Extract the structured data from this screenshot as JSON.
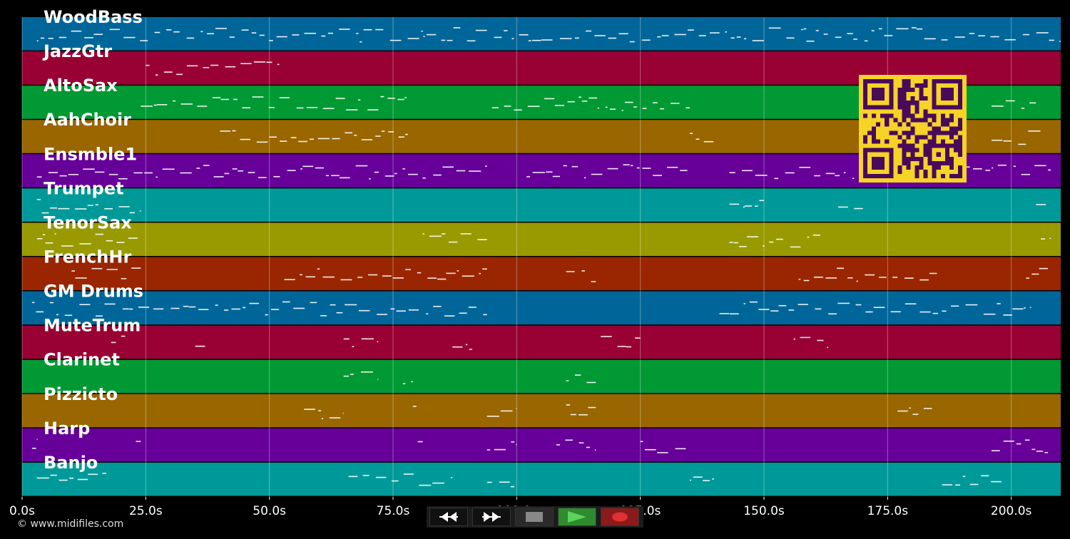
{
  "tracks": [
    {
      "name": "WoodBass",
      "color": "#006699"
    },
    {
      "name": "JazzGtr",
      "color": "#990033"
    },
    {
      "name": "AltoSax",
      "color": "#009933"
    },
    {
      "name": "AahChoir",
      "color": "#996600"
    },
    {
      "name": "Ensmble1",
      "color": "#660099"
    },
    {
      "name": "Trumpet",
      "color": "#009999"
    },
    {
      "name": "TenorSax",
      "color": "#999900"
    },
    {
      "name": "FrenchHr",
      "color": "#992600"
    },
    {
      "name": "GM Drums",
      "color": "#006699"
    },
    {
      "name": "MuteTrum",
      "color": "#990033"
    },
    {
      "name": "Clarinet",
      "color": "#009933"
    },
    {
      "name": "Pizzicto",
      "color": "#996600"
    },
    {
      "name": "Harp",
      "color": "#660099"
    },
    {
      "name": "Banjo",
      "color": "#009999"
    }
  ],
  "time_axis": {
    "ticks": [
      "0.0s",
      "25.0s",
      "50.0s",
      "75.0s",
      "100.0s",
      "125.0s",
      "150.0s",
      "175.0s",
      "200.0s"
    ],
    "tick_values": [
      0,
      25,
      50,
      75,
      100,
      125,
      150,
      175,
      200
    ],
    "range_seconds": [
      0,
      210
    ]
  },
  "transport": {
    "rewind_icon": "rewind-icon",
    "forward_icon": "fast-forward-icon",
    "stop_icon": "stop-icon",
    "play_icon": "play-icon",
    "record_icon": "record-icon",
    "play_color": "#2e8b2e",
    "record_color": "#8b1a1a"
  },
  "credit": "© www.midifiles.com",
  "qr_colors": {
    "fg": "#4a0a5a",
    "bg": "#f5d327"
  }
}
